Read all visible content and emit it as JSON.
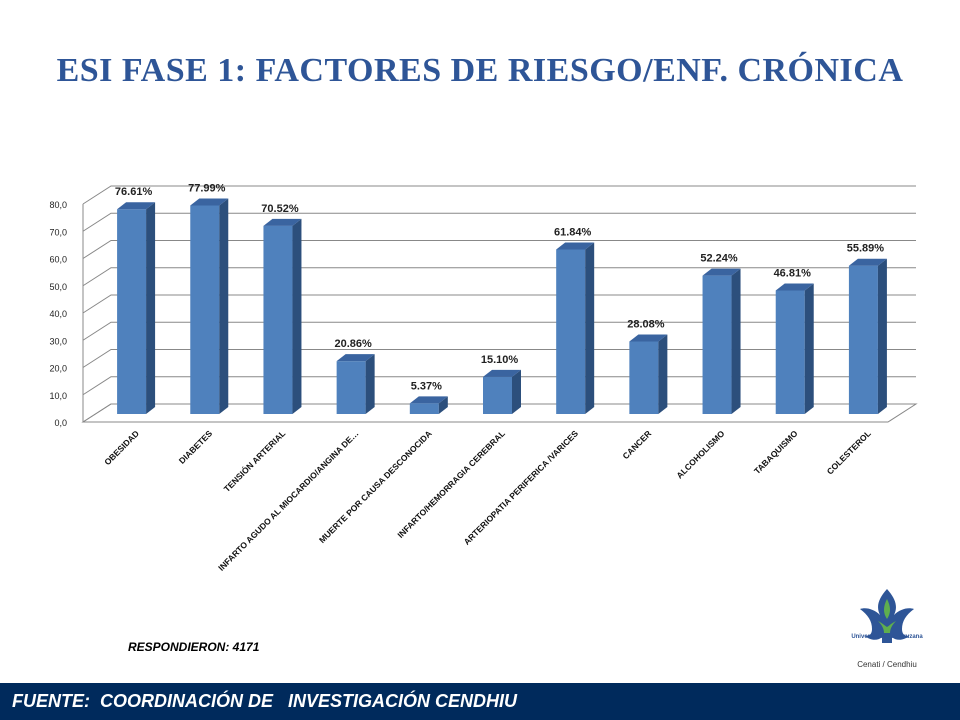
{
  "slide": {
    "title": "ESI FASE 1: FACTORES  DE RIESGO/ENF. CRÓNICA",
    "respondents": "RESPONDIERON: 4171",
    "footer": "FUENTE:  COORDINACIÓN DE   INVESTIGACIÓN CENDHIU",
    "logo": {
      "name": "Universidad Veracruzana",
      "subtitle": "Cenati / Cendhiu",
      "icon": "uv-flower-logo"
    }
  },
  "colors": {
    "bar_front": "#4f81bd",
    "bar_side": "#2c4f7c",
    "bar_top": "#3a64a0",
    "title": "#2e5597",
    "footer_bg": "#002a5c"
  },
  "chart_data": {
    "type": "bar",
    "categories": [
      "OBESIDAD",
      "DIABETES",
      "TENSIÓN ARTERIAL",
      "INFARTO AGUDO AL MIOCARDIO/ANGINA DE…",
      "MUERTE POR CAUSA DESCONOCIDA",
      "INFARTO/HEMORRAGIA CEREBRAL",
      "ARTERIOPATIA PERIFERICA /VARICES",
      "CANCER",
      "ALCOHOLISMO",
      "TABAQUISMO",
      "COLESTEROL"
    ],
    "values": [
      76.61,
      77.99,
      70.52,
      20.86,
      5.37,
      15.1,
      61.84,
      28.08,
      52.24,
      46.81,
      55.89
    ],
    "data_labels": [
      "76.61%",
      "77.99%",
      "70.52%",
      "20.86%",
      "5.37%",
      "15.10%",
      "61.84%",
      "28.08%",
      "52.24%",
      "46.81%",
      "55.89%"
    ],
    "y_ticks": [
      "0,0",
      "10,0",
      "20,0",
      "30,0",
      "40,0",
      "50,0",
      "60,0",
      "70,0",
      "80,0"
    ],
    "ylim": [
      0,
      80
    ],
    "grid": true,
    "style": "3d-column"
  }
}
